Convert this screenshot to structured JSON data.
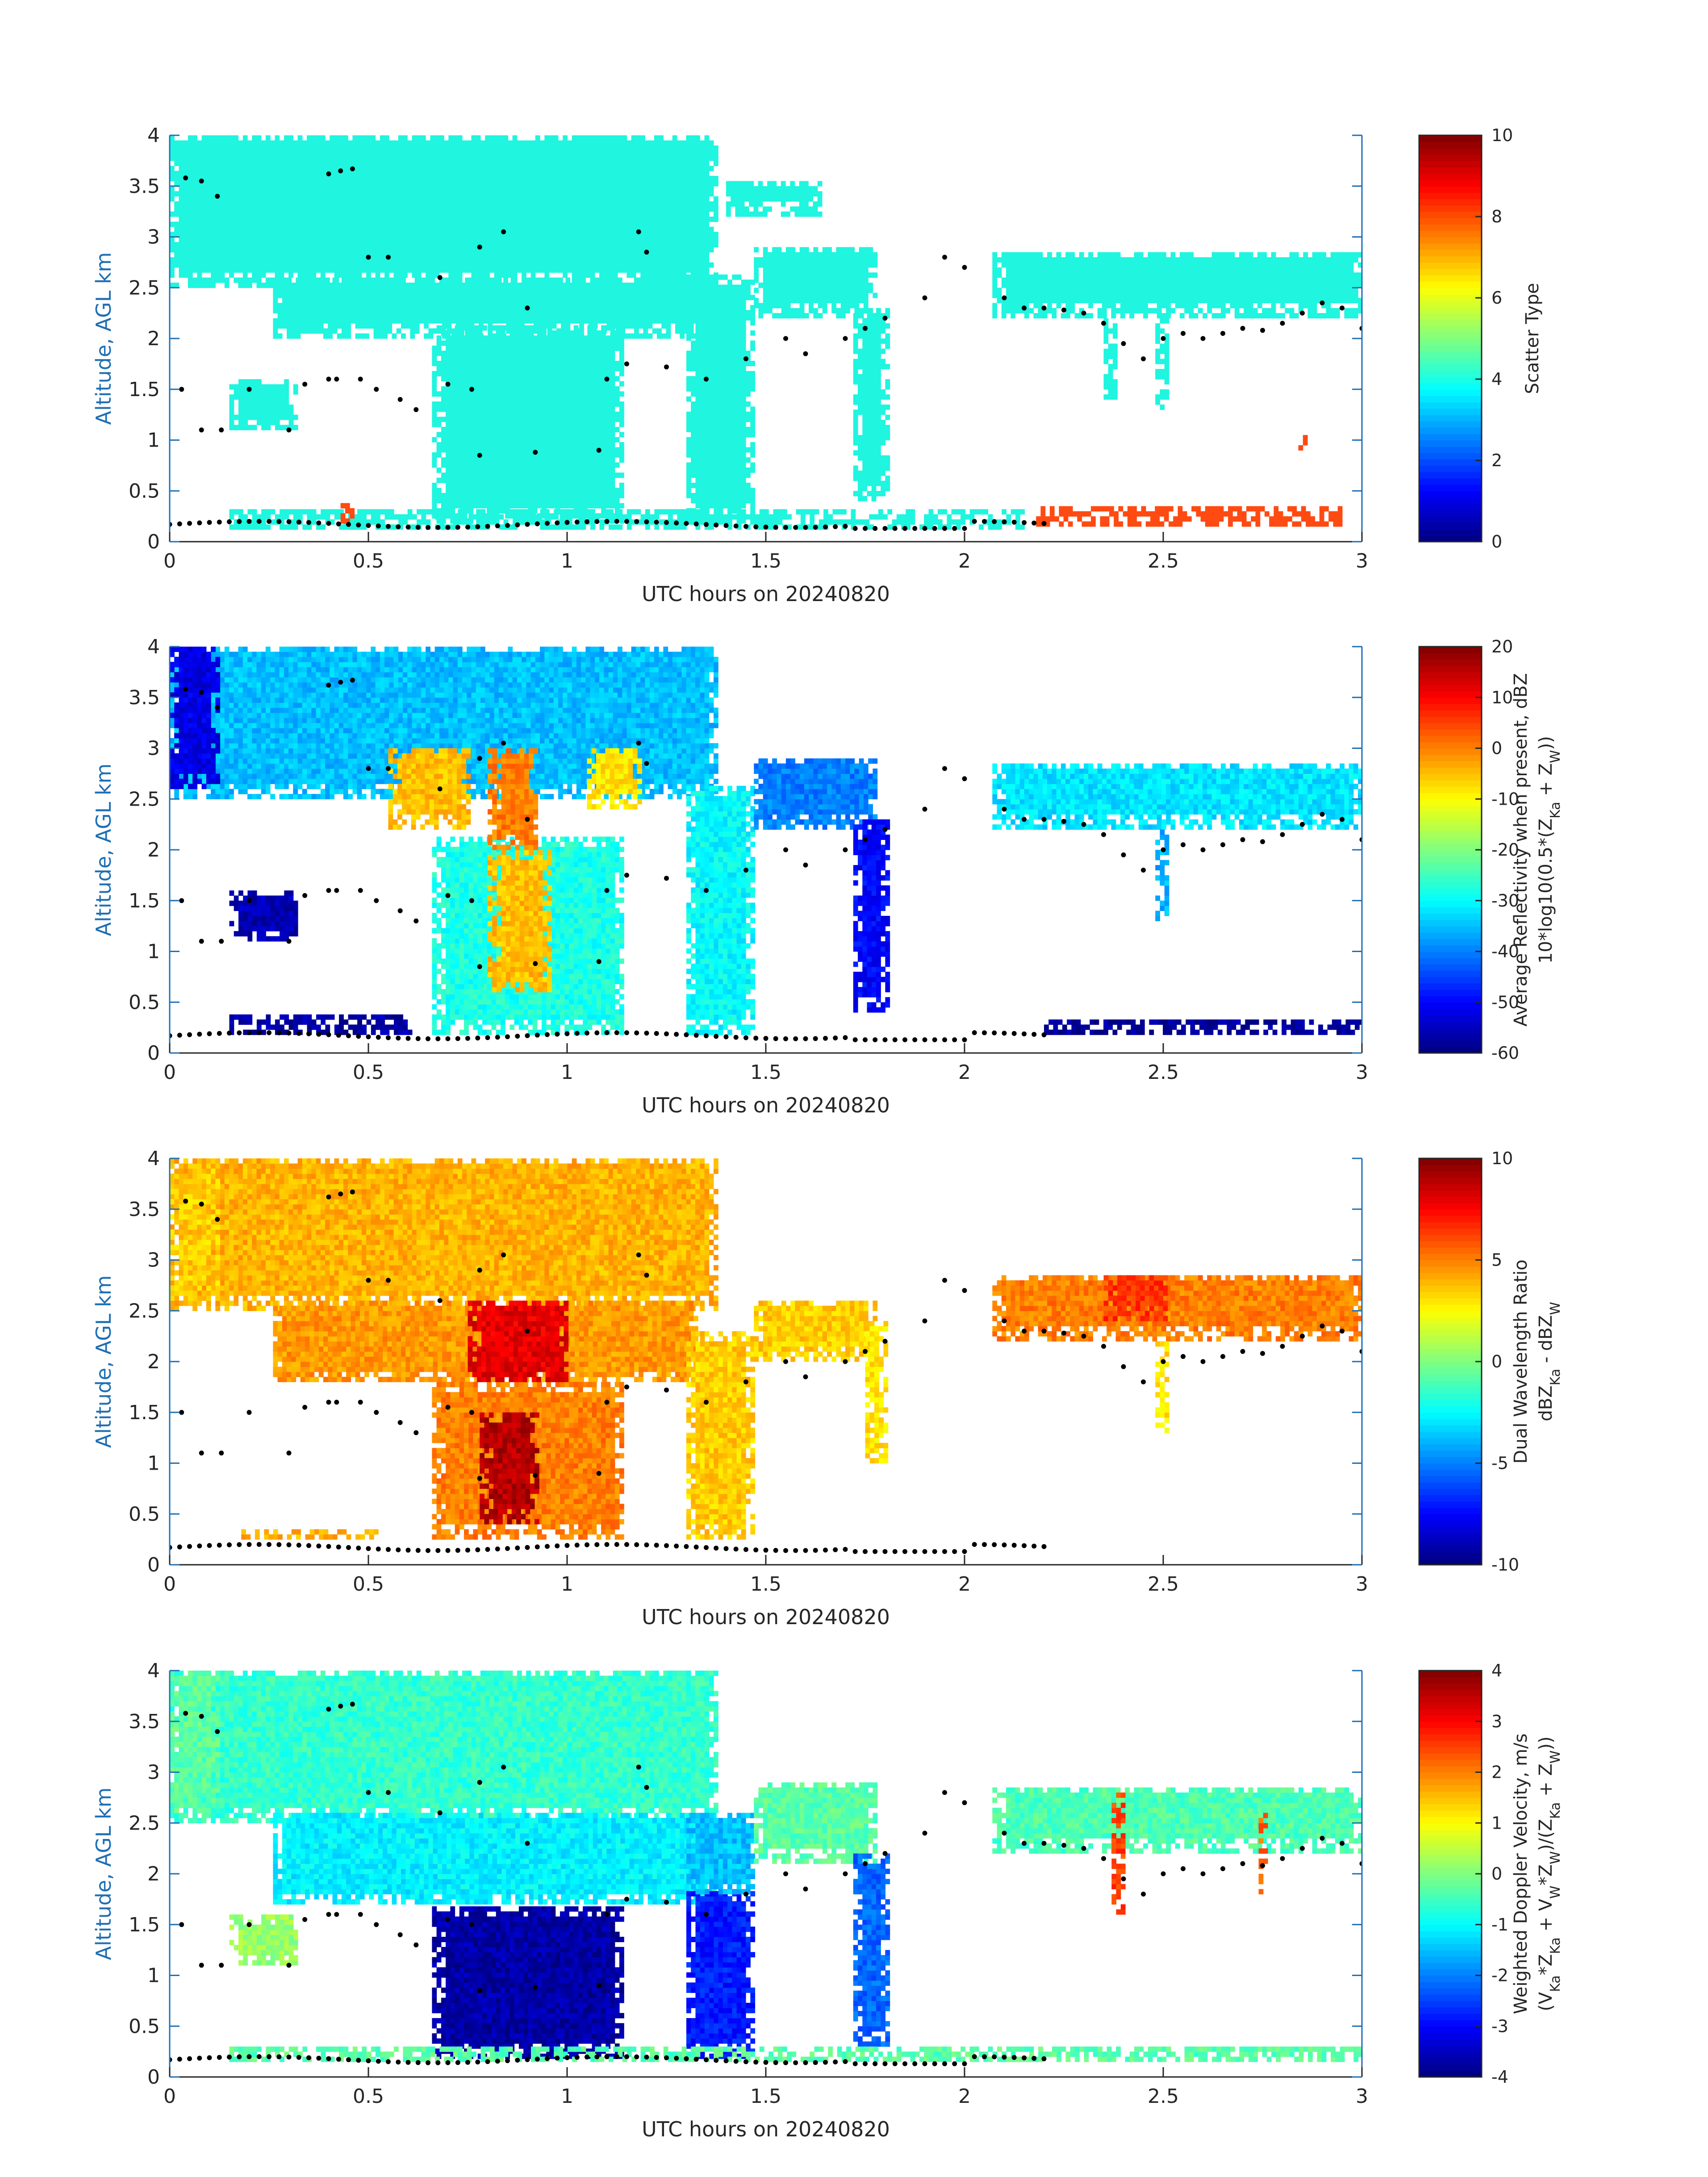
{
  "chart_data": [
    {
      "type": "heatmap",
      "xlabel": "UTC hours on 20240820",
      "ylabel": "Altitude, AGL km",
      "xlim": [
        0,
        3
      ],
      "ylim": [
        0,
        4
      ],
      "xticks": [
        "0",
        "0.5",
        "1",
        "1.5",
        "2",
        "2.5",
        "3"
      ],
      "yticks": [
        "0",
        "0.5",
        "1",
        "1.5",
        "2",
        "2.5",
        "3",
        "3.5",
        "4"
      ],
      "colorbar": {
        "label_lines": [
          "Scatter Type"
        ],
        "range": [
          0,
          10
        ],
        "ticks": [
          "0",
          "2",
          "4",
          "6",
          "8",
          "10"
        ],
        "colormap": "jet"
      },
      "dominant_value": 3.8,
      "accent_value": 8.3,
      "fill_color": "#1ff5df",
      "accent_color": "#ff4a12",
      "regions": [
        {
          "x": [
            0.0,
            1.37
          ],
          "y": [
            2.5,
            4.0
          ],
          "v": 3.8
        },
        {
          "x": [
            0.26,
            1.37
          ],
          "y": [
            2.0,
            2.6
          ],
          "v": 3.8
        },
        {
          "x": [
            0.66,
            1.14
          ],
          "y": [
            0.18,
            2.1
          ],
          "v": 3.8
        },
        {
          "x": [
            1.3,
            1.47
          ],
          "y": [
            0.18,
            2.6
          ],
          "v": 3.8
        },
        {
          "x": [
            1.47,
            1.77
          ],
          "y": [
            2.2,
            2.9
          ],
          "v": 3.8
        },
        {
          "x": [
            1.72,
            1.81
          ],
          "y": [
            0.4,
            2.3
          ],
          "v": 3.8
        },
        {
          "x": [
            1.4,
            1.64
          ],
          "y": [
            3.2,
            3.55
          ],
          "v": 3.8
        },
        {
          "x": [
            2.07,
            3.0
          ],
          "y": [
            2.2,
            2.85
          ],
          "v": 3.8
        },
        {
          "x": [
            0.15,
            0.32
          ],
          "y": [
            1.1,
            1.6
          ],
          "v": 3.8
        },
        {
          "x": [
            0.15,
            2.15
          ],
          "y": [
            0.12,
            0.3
          ],
          "v": 3.8
        },
        {
          "x": [
            2.35,
            2.38
          ],
          "y": [
            1.4,
            2.2
          ],
          "v": 3.8
        },
        {
          "x": [
            2.48,
            2.51
          ],
          "y": [
            1.3,
            2.2
          ],
          "v": 3.8
        },
        {
          "x": [
            2.18,
            2.95
          ],
          "y": [
            0.15,
            0.35
          ],
          "v": 8.3
        },
        {
          "x": [
            0.43,
            0.46
          ],
          "y": [
            0.18,
            0.35
          ],
          "v": 8.3
        },
        {
          "x": [
            2.84,
            2.86
          ],
          "y": [
            0.9,
            1.05
          ],
          "v": 8.3
        }
      ]
    },
    {
      "type": "heatmap",
      "xlabel": "UTC hours on 20240820",
      "ylabel": "Altitude, AGL km",
      "xlim": [
        0,
        3
      ],
      "ylim": [
        0,
        4
      ],
      "xticks": [
        "0",
        "0.5",
        "1",
        "1.5",
        "2",
        "2.5",
        "3"
      ],
      "yticks": [
        "0",
        "0.5",
        "1",
        "1.5",
        "2",
        "2.5",
        "3",
        "3.5",
        "4"
      ],
      "colorbar": {
        "label_lines": [
          "Average Reflectivity when present, dBZ",
          "10*log10(0.5*(Z",
          "Ka",
          " + Z",
          "W",
          "))"
        ],
        "range": [
          -60,
          20
        ],
        "ticks": [
          "-60",
          "-50",
          "-40",
          "-30",
          "-20",
          "-10",
          "0",
          "10",
          "20"
        ],
        "colormap": "jet"
      },
      "regions": [
        {
          "x": [
            0.0,
            1.37
          ],
          "y": [
            2.5,
            4.0
          ],
          "v": -35
        },
        {
          "x": [
            0.66,
            1.14
          ],
          "y": [
            0.18,
            2.1
          ],
          "v": -28
        },
        {
          "x": [
            0.8,
            0.95
          ],
          "y": [
            0.6,
            2.0
          ],
          "v": -5
        },
        {
          "x": [
            0.55,
            0.75
          ],
          "y": [
            2.2,
            3.0
          ],
          "v": -5
        },
        {
          "x": [
            0.8,
            0.92
          ],
          "y": [
            2.0,
            3.0
          ],
          "v": 0
        },
        {
          "x": [
            1.05,
            1.18
          ],
          "y": [
            2.4,
            3.0
          ],
          "v": -8
        },
        {
          "x": [
            1.3,
            1.47
          ],
          "y": [
            0.18,
            2.6
          ],
          "v": -30
        },
        {
          "x": [
            1.47,
            1.77
          ],
          "y": [
            2.2,
            2.9
          ],
          "v": -40
        },
        {
          "x": [
            1.72,
            1.81
          ],
          "y": [
            0.4,
            2.3
          ],
          "v": -50
        },
        {
          "x": [
            2.07,
            3.0
          ],
          "y": [
            2.2,
            2.85
          ],
          "v": -32
        },
        {
          "x": [
            0.0,
            0.12
          ],
          "y": [
            2.6,
            4.0
          ],
          "v": -52
        },
        {
          "x": [
            0.15,
            0.32
          ],
          "y": [
            1.1,
            1.6
          ],
          "v": -56
        },
        {
          "x": [
            0.15,
            0.6
          ],
          "y": [
            0.18,
            0.35
          ],
          "v": -57
        },
        {
          "x": [
            2.2,
            3.0
          ],
          "y": [
            0.18,
            0.3
          ],
          "v": -58
        },
        {
          "x": [
            2.48,
            2.51
          ],
          "y": [
            1.3,
            2.2
          ],
          "v": -36
        }
      ]
    },
    {
      "type": "heatmap",
      "xlabel": "UTC hours on 20240820",
      "ylabel": "Altitude, AGL km",
      "xlim": [
        0,
        3
      ],
      "ylim": [
        0,
        4
      ],
      "xticks": [
        "0",
        "0.5",
        "1",
        "1.5",
        "2",
        "2.5",
        "3"
      ],
      "yticks": [
        "0",
        "0.5",
        "1",
        "1.5",
        "2",
        "2.5",
        "3",
        "3.5",
        "4"
      ],
      "colorbar": {
        "label_lines": [
          "Dual Wavelength Ratio",
          "dBZ",
          "Ka",
          " - dBZ",
          "W"
        ],
        "range": [
          -10,
          10
        ],
        "ticks": [
          "-10",
          "-5",
          "0",
          "5",
          "10"
        ],
        "colormap": "jet"
      },
      "regions": [
        {
          "x": [
            0.0,
            1.37
          ],
          "y": [
            2.5,
            4.0
          ],
          "v": 4
        },
        {
          "x": [
            0.26,
            1.32
          ],
          "y": [
            1.8,
            2.6
          ],
          "v": 4.5
        },
        {
          "x": [
            0.66,
            1.14
          ],
          "y": [
            0.25,
            1.8
          ],
          "v": 5
        },
        {
          "x": [
            0.78,
            0.92
          ],
          "y": [
            0.4,
            1.5
          ],
          "v": 9
        },
        {
          "x": [
            0.75,
            1.0
          ],
          "y": [
            1.8,
            2.6
          ],
          "v": 8
        },
        {
          "x": [
            1.3,
            1.47
          ],
          "y": [
            0.25,
            2.3
          ],
          "v": 3.5
        },
        {
          "x": [
            1.47,
            1.78
          ],
          "y": [
            2.0,
            2.6
          ],
          "v": 3.5
        },
        {
          "x": [
            1.75,
            1.8
          ],
          "y": [
            1.0,
            2.4
          ],
          "v": 3
        },
        {
          "x": [
            2.07,
            3.0
          ],
          "y": [
            2.2,
            2.85
          ],
          "v": 5
        },
        {
          "x": [
            2.35,
            2.5
          ],
          "y": [
            2.4,
            2.85
          ],
          "v": 6.5
        },
        {
          "x": [
            0.0,
            0.12
          ],
          "y": [
            2.6,
            3.9
          ],
          "v": 3.5
        },
        {
          "x": [
            0.18,
            0.52
          ],
          "y": [
            0.25,
            0.32
          ],
          "v": 4
        },
        {
          "x": [
            2.48,
            2.51
          ],
          "y": [
            1.3,
            2.2
          ],
          "v": 3
        }
      ]
    },
    {
      "type": "heatmap",
      "xlabel": "UTC hours on 20240820",
      "ylabel": "Altitude, AGL km",
      "xlim": [
        0,
        3
      ],
      "ylim": [
        0,
        4
      ],
      "xticks": [
        "0",
        "0.5",
        "1",
        "1.5",
        "2",
        "2.5",
        "3"
      ],
      "yticks": [
        "0",
        "0.5",
        "1",
        "1.5",
        "2",
        "2.5",
        "3",
        "3.5",
        "4"
      ],
      "colorbar": {
        "label_lines": [
          "Weighted Doppler Velocity, m/s",
          "(V",
          "Ka",
          "*Z",
          "Ka",
          " + V",
          "W",
          "*Z",
          "W",
          ")/(Z",
          "Ka",
          " + Z",
          "W",
          "))"
        ],
        "range": [
          -4,
          4
        ],
        "ticks": [
          "-4",
          "-3",
          "-2",
          "-1",
          "0",
          "1",
          "2",
          "3",
          "4"
        ],
        "colormap": "jet"
      },
      "regions": [
        {
          "x": [
            0.0,
            1.37
          ],
          "y": [
            2.5,
            4.0
          ],
          "v": -0.6
        },
        {
          "x": [
            0.26,
            1.37
          ],
          "y": [
            1.7,
            2.6
          ],
          "v": -1.1
        },
        {
          "x": [
            0.66,
            1.14
          ],
          "y": [
            0.18,
            1.65
          ],
          "v": -3.7
        },
        {
          "x": [
            1.3,
            1.47
          ],
          "y": [
            0.18,
            1.8
          ],
          "v": -2.8
        },
        {
          "x": [
            1.3,
            1.47
          ],
          "y": [
            1.8,
            2.6
          ],
          "v": -1.5
        },
        {
          "x": [
            1.47,
            1.78
          ],
          "y": [
            2.1,
            2.9
          ],
          "v": -0.3
        },
        {
          "x": [
            1.72,
            1.81
          ],
          "y": [
            0.3,
            2.2
          ],
          "v": -2.2
        },
        {
          "x": [
            2.07,
            3.0
          ],
          "y": [
            2.2,
            2.85
          ],
          "v": -0.4
        },
        {
          "x": [
            2.37,
            2.4
          ],
          "y": [
            1.6,
            2.8
          ],
          "v": 2.5
        },
        {
          "x": [
            2.74,
            2.76
          ],
          "y": [
            1.8,
            2.6
          ],
          "v": 2.2
        },
        {
          "x": [
            0.15,
            0.32
          ],
          "y": [
            1.1,
            1.6
          ],
          "v": 0.2
        },
        {
          "x": [
            0.15,
            3.0
          ],
          "y": [
            0.15,
            0.3
          ],
          "v": -0.3
        },
        {
          "x": [
            0.0,
            0.12
          ],
          "y": [
            2.6,
            4.0
          ],
          "v": -0.3
        }
      ]
    }
  ]
}
